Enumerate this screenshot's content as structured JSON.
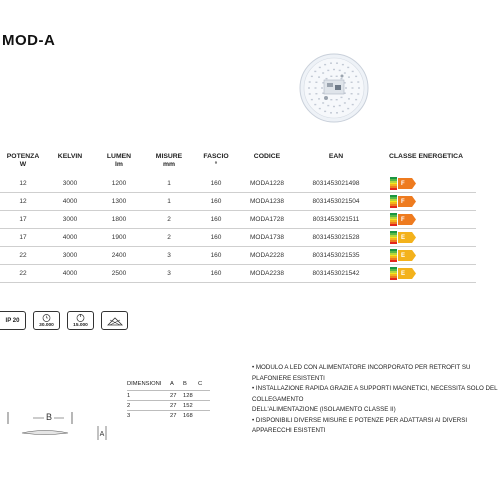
{
  "header": {
    "title": "MOD-A"
  },
  "table": {
    "headers": [
      {
        "line1": "POTENZA",
        "line2": "W"
      },
      {
        "line1": "KELVIN",
        "line2": ""
      },
      {
        "line1": "LUMEN",
        "line2": "lm"
      },
      {
        "line1": "MISURE",
        "line2": "mm"
      },
      {
        "line1": "FASCIO",
        "line2": "°"
      },
      {
        "line1": "CODICE",
        "line2": ""
      },
      {
        "line1": "EAN",
        "line2": ""
      },
      {
        "line1": "CLASSE ENERGETICA",
        "line2": ""
      }
    ],
    "rows": [
      {
        "w": "12",
        "k": "3000",
        "lm": "1200",
        "mm": "1",
        "deg": "160",
        "code": "MODA1228",
        "ean": "8031453021498",
        "class": "F"
      },
      {
        "w": "12",
        "k": "4000",
        "lm": "1300",
        "mm": "1",
        "deg": "160",
        "code": "MODA1238",
        "ean": "8031453021504",
        "class": "F"
      },
      {
        "w": "17",
        "k": "3000",
        "lm": "1800",
        "mm": "2",
        "deg": "160",
        "code": "MODA1728",
        "ean": "8031453021511",
        "class": "F"
      },
      {
        "w": "17",
        "k": "4000",
        "lm": "1900",
        "mm": "2",
        "deg": "160",
        "code": "MODA1738",
        "ean": "8031453021528",
        "class": "E"
      },
      {
        "w": "22",
        "k": "3000",
        "lm": "2400",
        "mm": "3",
        "deg": "160",
        "code": "MODA2228",
        "ean": "8031453021535",
        "class": "E"
      },
      {
        "w": "22",
        "k": "4000",
        "lm": "2500",
        "mm": "3",
        "deg": "160",
        "code": "MODA2238",
        "ean": "8031453021542",
        "class": "E"
      }
    ],
    "energy_colors": {
      "F": "#ee7b1f",
      "E": "#f3b21c"
    }
  },
  "icons": [
    {
      "name": "ip-rating-icon",
      "label": "IP 20"
    },
    {
      "name": "lifetime-icon",
      "label": "30.000"
    },
    {
      "name": "switching-cycles-icon",
      "label": "15.000"
    },
    {
      "name": "lamp-icon",
      "label": ""
    }
  ],
  "dimensions": {
    "headers": [
      "DIMENSIONI",
      "A",
      "B",
      "C"
    ],
    "rows": [
      [
        "1",
        "27",
        "128",
        ""
      ],
      [
        "2",
        "27",
        "152",
        ""
      ],
      [
        "3",
        "27",
        "168",
        ""
      ]
    ]
  },
  "features": [
    "• MODULO A LED CON ALIMENTATORE INCORPORATO PER RETROFIT SU PLAFONIERE ESISTENTI",
    "• INSTALLAZIONE RAPIDA GRAZIE A SUPPORTI MAGNETICI, NECESSITA SOLO DEL COLLEGAMENTO",
    "DELL'ALIMENTAZIONE (ISOLAMENTO CLASSE II)",
    "• DISPONIBILI DIVERSE MISURE E POTENZE PER ADATTARSI AI DIVERSI APPARECCHI ESISTENTI"
  ],
  "drawing": {
    "label_b": "B",
    "label_a": "A"
  }
}
